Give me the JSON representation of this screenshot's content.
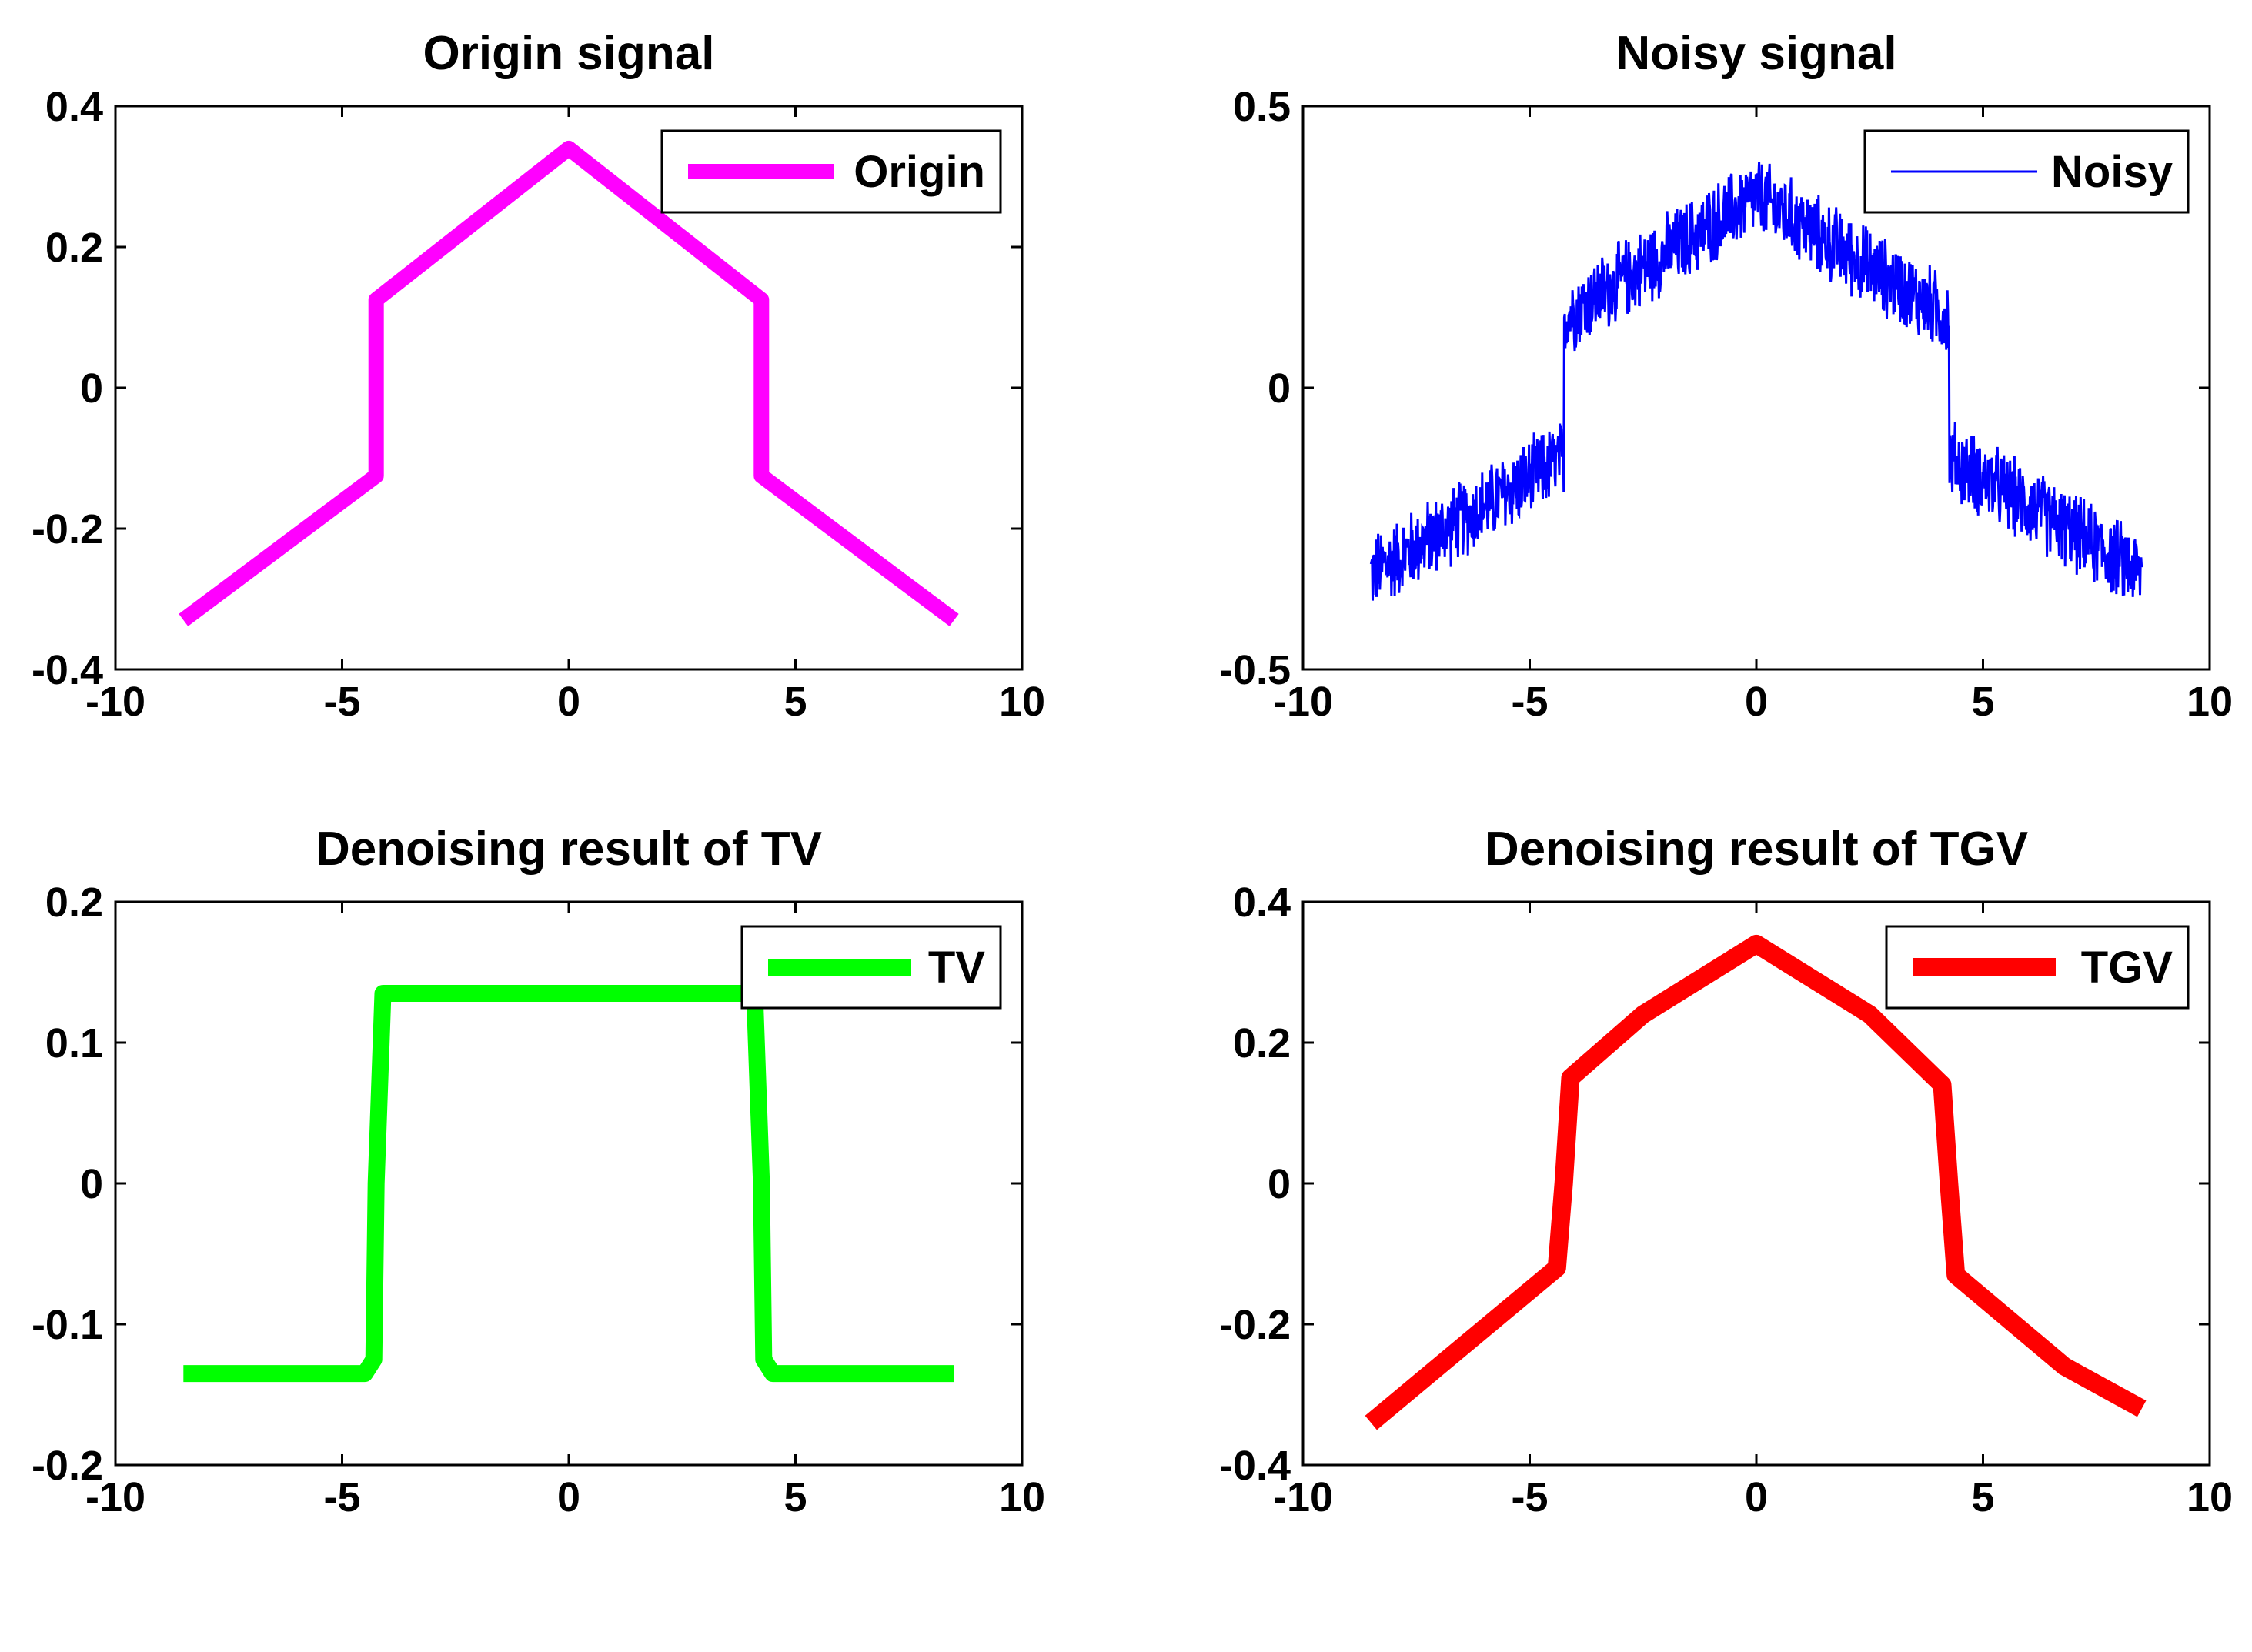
{
  "chart_data": [
    {
      "type": "line",
      "title": "Origin signal",
      "xlabel": "",
      "ylabel": "",
      "xlim": [
        -10,
        10
      ],
      "ylim": [
        -0.4,
        0.4
      ],
      "xticks": [
        "-10",
        "-5",
        "0",
        "5",
        "10"
      ],
      "yticks": [
        "-0.4",
        "-0.2",
        "0",
        "0.2",
        "0.4"
      ],
      "grid": false,
      "legend_position": "top-right",
      "series": [
        {
          "name": "Origin",
          "color": "#ff00ff",
          "noisy": false,
          "x": [
            -8.5,
            -4.25,
            -4.25,
            0,
            4.25,
            4.25,
            8.5
          ],
          "y": [
            -0.33,
            -0.125,
            0.125,
            0.34,
            0.125,
            -0.125,
            -0.33
          ]
        }
      ]
    },
    {
      "type": "line",
      "title": "Noisy signal",
      "xlabel": "",
      "ylabel": "",
      "xlim": [
        -10,
        10
      ],
      "ylim": [
        -0.5,
        0.5
      ],
      "xticks": [
        "-10",
        "-5",
        "0",
        "5",
        "10"
      ],
      "yticks": [
        "-0.5",
        "0",
        "0.5"
      ],
      "grid": false,
      "legend_position": "top-right",
      "series": [
        {
          "name": "Noisy",
          "color": "#0000ff",
          "noisy": true,
          "noise_amplitude": 0.08,
          "x": [
            -8.5,
            -4.25,
            -4.25,
            0,
            4.25,
            4.25,
            8.5
          ],
          "y": [
            -0.33,
            -0.125,
            0.125,
            0.34,
            0.125,
            -0.125,
            -0.33
          ]
        }
      ]
    },
    {
      "type": "line",
      "title": "Denoising result of TV",
      "xlabel": "",
      "ylabel": "",
      "xlim": [
        -10,
        10
      ],
      "ylim": [
        -0.2,
        0.2
      ],
      "xticks": [
        "-10",
        "-5",
        "0",
        "5",
        "10"
      ],
      "yticks": [
        "-0.2",
        "-0.1",
        "0",
        "0.1",
        "0.2"
      ],
      "grid": false,
      "legend_position": "top-right",
      "series": [
        {
          "name": "TV",
          "color": "#00ff00",
          "noisy": false,
          "x": [
            -8.5,
            -4.5,
            -4.3,
            -4.25,
            -4.1,
            4.1,
            4.25,
            4.3,
            4.5,
            8.5
          ],
          "y": [
            -0.135,
            -0.135,
            -0.125,
            0.0,
            0.135,
            0.135,
            0.0,
            -0.125,
            -0.135,
            -0.135
          ]
        }
      ]
    },
    {
      "type": "line",
      "title": "Denoising result of TGV",
      "xlabel": "",
      "ylabel": "",
      "xlim": [
        -10,
        10
      ],
      "ylim": [
        -0.4,
        0.4
      ],
      "xticks": [
        "-10",
        "-5",
        "0",
        "5",
        "10"
      ],
      "yticks": [
        "-0.4",
        "-0.2",
        "0",
        "0.2",
        "0.4"
      ],
      "grid": false,
      "legend_position": "top-right",
      "series": [
        {
          "name": "TGV",
          "color": "#ff0000",
          "noisy": false,
          "x": [
            -8.5,
            -4.4,
            -4.25,
            -4.1,
            -2.5,
            0,
            2.5,
            4.1,
            4.25,
            4.4,
            6.8,
            8.5
          ],
          "y": [
            -0.34,
            -0.12,
            0.0,
            0.15,
            0.24,
            0.34,
            0.24,
            0.14,
            0.0,
            -0.13,
            -0.26,
            -0.32
          ]
        }
      ]
    }
  ]
}
